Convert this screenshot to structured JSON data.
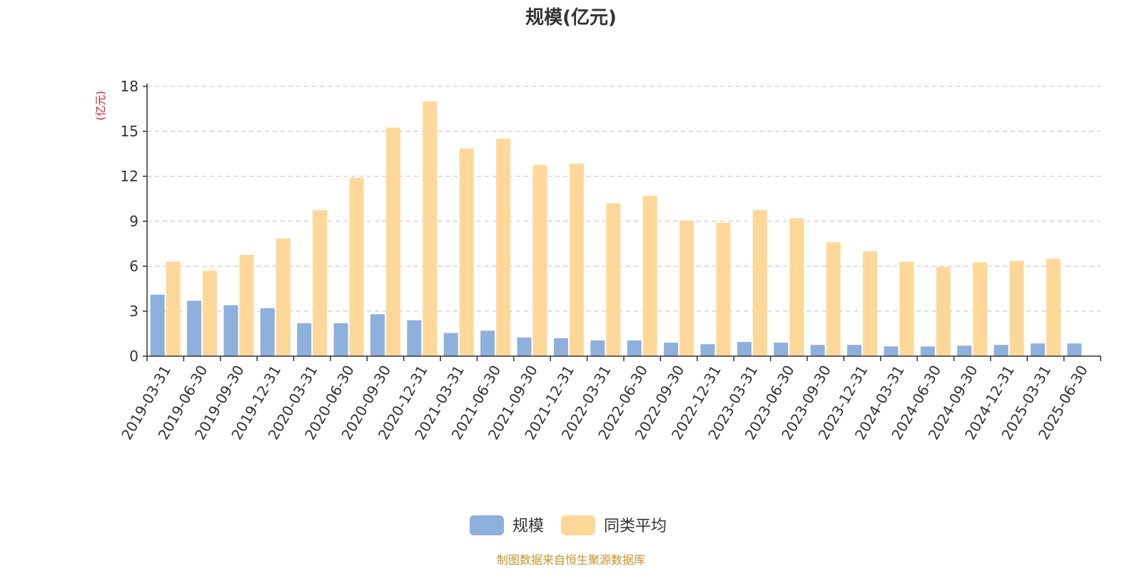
{
  "chart_data": {
    "type": "bar",
    "title": "规模(亿元)",
    "ylabel": "(亿元)",
    "ylim": [
      0,
      18
    ],
    "yticks": [
      0,
      3,
      6,
      9,
      12,
      15,
      18
    ],
    "grid": true,
    "legend_position": "bottom",
    "categories": [
      "2019-03-31",
      "2019-06-30",
      "2019-09-30",
      "2019-12-31",
      "2020-03-31",
      "2020-06-30",
      "2020-09-30",
      "2020-12-31",
      "2021-03-31",
      "2021-06-30",
      "2021-09-30",
      "2021-12-31",
      "2022-03-31",
      "2022-06-30",
      "2022-09-30",
      "2022-12-31",
      "2023-03-31",
      "2023-06-30",
      "2023-09-30",
      "2023-12-31",
      "2024-03-31",
      "2024-06-30",
      "2024-09-30",
      "2024-12-31",
      "2025-03-31",
      "2025-06-30"
    ],
    "series": [
      {
        "name": "规模",
        "color": "#8eb0dc",
        "values": [
          4.1,
          3.7,
          3.4,
          3.2,
          2.2,
          2.2,
          2.8,
          2.4,
          1.55,
          1.7,
          1.25,
          1.2,
          1.05,
          1.05,
          0.9,
          0.8,
          0.95,
          0.9,
          0.75,
          0.75,
          0.65,
          0.65,
          0.7,
          0.75,
          0.85,
          0.85
        ]
      },
      {
        "name": "同类平均",
        "color": "#ffd899",
        "values": [
          6.3,
          5.7,
          6.75,
          7.85,
          9.75,
          11.9,
          15.25,
          17.0,
          13.85,
          14.5,
          12.75,
          12.85,
          10.2,
          10.7,
          9.05,
          8.9,
          9.75,
          9.2,
          7.6,
          7.0,
          6.3,
          5.95,
          6.25,
          6.35,
          6.5,
          null
        ]
      }
    ]
  },
  "source_note": "制图数据来自恒生聚源数据库"
}
